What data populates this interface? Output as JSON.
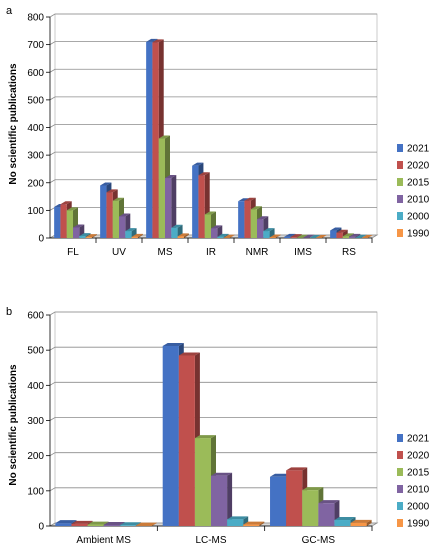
{
  "colors": {
    "2021": "#4472c4",
    "2020": "#c0504d",
    "2015": "#9bbb59",
    "2010": "#8064a2",
    "2000": "#4bacc6",
    "1990": "#f79646"
  },
  "chart_data": [
    {
      "type": "bar",
      "panel_label": "a",
      "title": "",
      "xlabel": "",
      "ylabel": "No scientific publications",
      "ylim": [
        0,
        800
      ],
      "yticks": [
        0,
        100,
        200,
        300,
        400,
        500,
        600,
        700,
        800
      ],
      "grid": true,
      "legend_position": "right",
      "categories": [
        "FL",
        "UV",
        "MS",
        "IR",
        "NMR",
        "IMS",
        "RS"
      ],
      "series": [
        {
          "name": "2021",
          "values": [
            112,
            190,
            710,
            262,
            133,
            4,
            27
          ]
        },
        {
          "name": "2020",
          "values": [
            122,
            165,
            708,
            227,
            135,
            3,
            19
          ]
        },
        {
          "name": "2015",
          "values": [
            100,
            135,
            360,
            85,
            104,
            1,
            6
          ]
        },
        {
          "name": "2010",
          "values": [
            38,
            78,
            217,
            35,
            68,
            1,
            4
          ]
        },
        {
          "name": "2000",
          "values": [
            7,
            25,
            37,
            4,
            25,
            0,
            1
          ]
        },
        {
          "name": "1990",
          "values": [
            3,
            4,
            6,
            1,
            2,
            0,
            0
          ]
        }
      ]
    },
    {
      "type": "bar",
      "panel_label": "b",
      "title": "",
      "xlabel": "",
      "ylabel": "No scientific publications",
      "ylim": [
        0,
        600
      ],
      "yticks": [
        0,
        100,
        200,
        300,
        400,
        500,
        600
      ],
      "grid": true,
      "legend_position": "right",
      "categories": [
        "Ambient MS",
        "LC-MS",
        "GC-MS"
      ],
      "series": [
        {
          "name": "2021",
          "values": [
            8,
            512,
            140
          ]
        },
        {
          "name": "2020",
          "values": [
            6,
            485,
            158
          ]
        },
        {
          "name": "2015",
          "values": [
            4,
            250,
            102
          ]
        },
        {
          "name": "2010",
          "values": [
            3,
            143,
            65
          ]
        },
        {
          "name": "2000",
          "values": [
            2,
            19,
            17
          ]
        },
        {
          "name": "1990",
          "values": [
            1,
            4,
            9
          ]
        }
      ]
    }
  ]
}
